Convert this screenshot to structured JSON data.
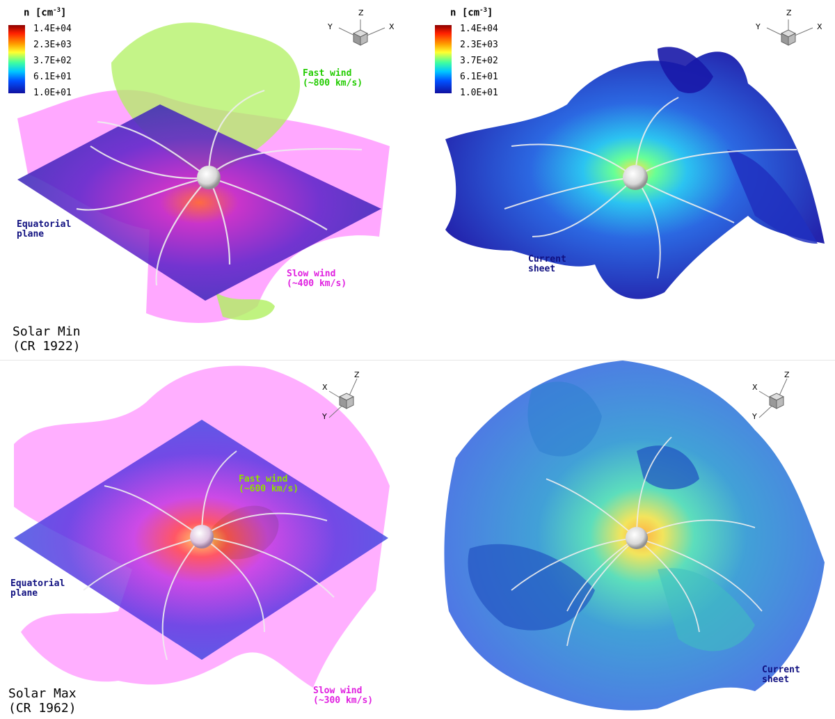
{
  "legend": {
    "title": "n [cm",
    "title_sup": "-3",
    "title_end": "]",
    "ticks": [
      "1.4E+04",
      "2.3E+03",
      "3.7E+02",
      "6.1E+01",
      "1.0E+01"
    ]
  },
  "panels": {
    "top_left": {
      "fast_wind": "Fast wind\n(~800 km/s)",
      "slow_wind": "Slow wind\n(~400 km/s)",
      "equatorial": "Equatorial\nplane",
      "period": "Solar Min\n(CR 1922)",
      "axes": {
        "z": "Z",
        "y": "Y",
        "x": "X"
      }
    },
    "top_right": {
      "current_sheet": "Current\nsheet",
      "axes": {
        "z": "Z",
        "y": "Y",
        "x": "X"
      }
    },
    "bottom_left": {
      "fast_wind": "Fast wind\n(~600 km/s)",
      "slow_wind": "Slow wind\n(~300 km/s)",
      "equatorial": "Equatorial\nplane",
      "period": "Solar Max\n(CR 1962)",
      "axes": {
        "z": "Z",
        "x": "X",
        "y": "Y"
      }
    },
    "bottom_right": {
      "current_sheet": "Current\nsheet"
    }
  },
  "colors": {
    "fast_wind_label": "#22cc00",
    "fast_wind_label_max": "#8ee000",
    "slow_wind_label": "#e020e0",
    "equatorial_label": "#101080",
    "current_sheet_label": "#101080"
  }
}
